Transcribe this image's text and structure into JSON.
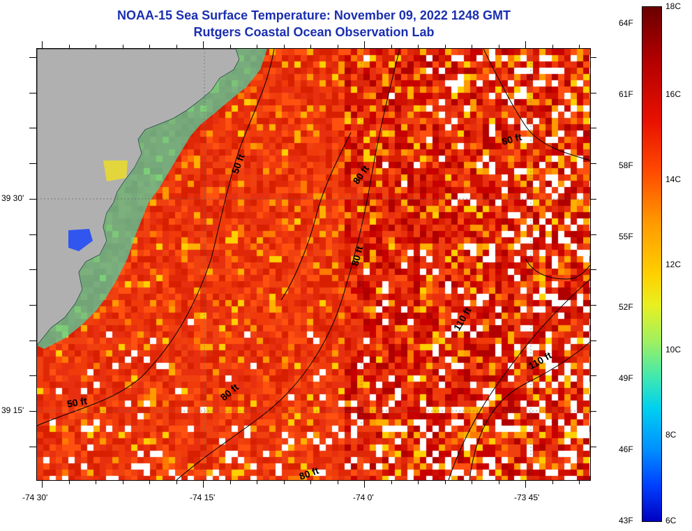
{
  "title": {
    "line1": "NOAA-15 Sea Surface Temperature:  November 09, 2022 1248 GMT",
    "line2": "Rutgers Coastal Ocean Observation Lab"
  },
  "map": {
    "land_color": "#b0b0b0",
    "missing_color": "#ffffff",
    "ocean_base_color": "#e83010",
    "x_axis_labels": [
      "-74 30'",
      "-74 15'",
      "-74 0'",
      "-73 45'"
    ],
    "y_axis_labels": [
      "39 30'",
      "39 15'"
    ],
    "contour_labels": [
      "50 ft",
      "50 ft",
      "80 ft",
      "80 ft",
      "80 ft",
      "80 ft",
      "80 ft",
      "110 ft",
      "110 ft"
    ]
  },
  "colorbar": {
    "fahrenheit_labels": [
      "64F",
      "61F",
      "58F",
      "55F",
      "52F",
      "49F",
      "46F",
      "43F"
    ],
    "celsius_labels": [
      "18C",
      "16C",
      "14C",
      "12C",
      "10C",
      "8C",
      "6C"
    ],
    "range_celsius": [
      6,
      18
    ]
  }
}
